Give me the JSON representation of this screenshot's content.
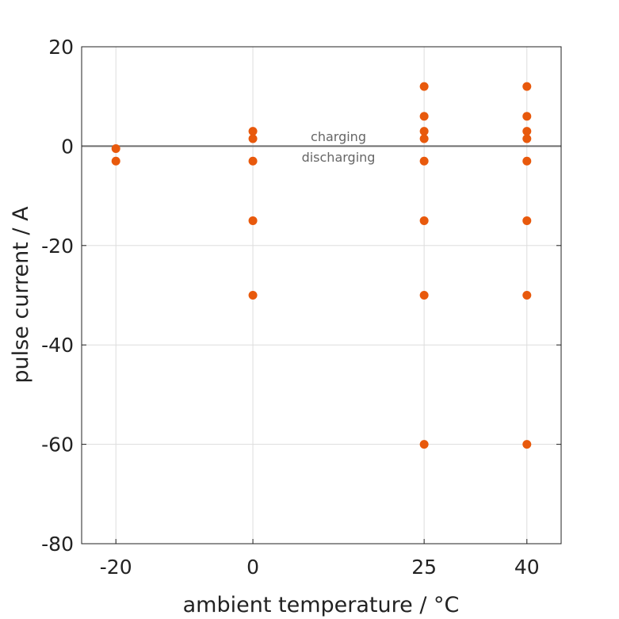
{
  "chart_data": {
    "type": "scatter",
    "title": "",
    "xlabel": "ambient temperature / °C",
    "ylabel": "pulse current / A",
    "xlim": [
      -25,
      45
    ],
    "ylim": [
      -80,
      20
    ],
    "xticks": [
      -20,
      0,
      25,
      40
    ],
    "yticks": [
      20,
      0,
      -20,
      -40,
      -60,
      -80
    ],
    "grid": true,
    "reference_line_y": 0,
    "annotations": {
      "above": "charging",
      "below": "discharging"
    },
    "point_color": "#e8590c",
    "points": [
      {
        "x": -20,
        "y": -0.5
      },
      {
        "x": -20,
        "y": -3
      },
      {
        "x": 0,
        "y": 3
      },
      {
        "x": 0,
        "y": 1.5
      },
      {
        "x": 0,
        "y": -3
      },
      {
        "x": 0,
        "y": -15
      },
      {
        "x": 0,
        "y": -30
      },
      {
        "x": 25,
        "y": 12
      },
      {
        "x": 25,
        "y": 6
      },
      {
        "x": 25,
        "y": 3
      },
      {
        "x": 25,
        "y": 1.5
      },
      {
        "x": 25,
        "y": -3
      },
      {
        "x": 25,
        "y": -15
      },
      {
        "x": 25,
        "y": -30
      },
      {
        "x": 25,
        "y": -60
      },
      {
        "x": 40,
        "y": 12
      },
      {
        "x": 40,
        "y": 6
      },
      {
        "x": 40,
        "y": 3
      },
      {
        "x": 40,
        "y": 1.5
      },
      {
        "x": 40,
        "y": -3
      },
      {
        "x": 40,
        "y": -15
      },
      {
        "x": 40,
        "y": -30
      },
      {
        "x": 40,
        "y": -60
      }
    ]
  }
}
